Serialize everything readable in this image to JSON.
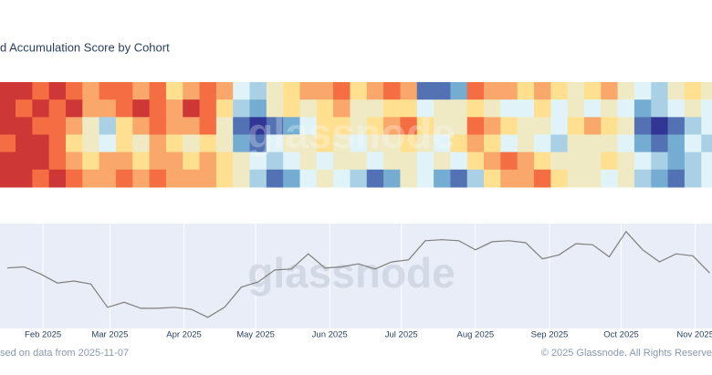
{
  "chart_data": [
    {
      "type": "heatmap",
      "title": "d Accumulation Score by Cohort",
      "watermark": "glassnode",
      "x": [
        "2025-01-17",
        "2025-01-24",
        "2025-01-31",
        "2025-02-07",
        "2025-02-14",
        "2025-02-21",
        "2025-02-28",
        "2025-03-07",
        "2025-03-14",
        "2025-03-21",
        "2025-03-28",
        "2025-04-04",
        "2025-04-11",
        "2025-04-18",
        "2025-04-25",
        "2025-05-02",
        "2025-05-09",
        "2025-05-16",
        "2025-05-23",
        "2025-05-30",
        "2025-06-06",
        "2025-06-13",
        "2025-06-20",
        "2025-06-27",
        "2025-07-04",
        "2025-07-11",
        "2025-07-18",
        "2025-07-25",
        "2025-08-01",
        "2025-08-08",
        "2025-08-15",
        "2025-08-22",
        "2025-08-29",
        "2025-09-05",
        "2025-09-12",
        "2025-09-19",
        "2025-09-26",
        "2025-10-03",
        "2025-10-10",
        "2025-10-17",
        "2025-10-24",
        "2025-10-31",
        "2025-11-07"
      ],
      "xlim": [
        "2025-01-14",
        "2025-11-08"
      ],
      "zlim": [
        0,
        1
      ],
      "colorscale": [
        "#a50026",
        "#f46d43",
        "#fee090",
        "#e0f3f8",
        "#74add1",
        "#313695"
      ],
      "z": [
        [
          0.1,
          0.1,
          0.2,
          0.1,
          0.2,
          0.3,
          0.2,
          0.2,
          0.3,
          0.2,
          0.4,
          0.3,
          0.2,
          0.3,
          0.6,
          0.7,
          0.5,
          0.4,
          0.3,
          0.3,
          0.2,
          0.4,
          0.3,
          0.2,
          0.3,
          0.9,
          0.9,
          0.8,
          0.2,
          0.3,
          0.3,
          0.4,
          0.3,
          0.4,
          0.5,
          0.4,
          0.3,
          0.5,
          0.6,
          0.7,
          0.5,
          0.4,
          0.5
        ],
        [
          0.1,
          0.2,
          0.1,
          0.2,
          0.1,
          0.3,
          0.3,
          0.2,
          0.1,
          0.2,
          0.3,
          0.1,
          0.2,
          0.4,
          0.7,
          0.8,
          0.5,
          0.4,
          0.5,
          0.4,
          0.3,
          0.5,
          0.5,
          0.4,
          0.4,
          0.6,
          0.5,
          0.5,
          0.4,
          0.5,
          0.6,
          0.6,
          0.4,
          0.6,
          0.5,
          0.6,
          0.5,
          0.6,
          0.8,
          0.7,
          0.6,
          0.5,
          0.6
        ],
        [
          0.1,
          0.1,
          0.2,
          0.2,
          0.3,
          0.5,
          0.7,
          0.4,
          0.3,
          0.2,
          0.3,
          0.3,
          0.2,
          0.5,
          0.9,
          1.0,
          0.9,
          0.8,
          0.6,
          0.4,
          0.4,
          0.5,
          0.4,
          0.3,
          0.2,
          0.4,
          0.5,
          0.5,
          0.2,
          0.3,
          0.4,
          0.5,
          0.5,
          0.6,
          0.4,
          0.3,
          0.4,
          0.5,
          0.9,
          1.0,
          0.9,
          0.7,
          0.6
        ],
        [
          0.2,
          0.1,
          0.1,
          0.2,
          0.4,
          0.5,
          0.6,
          0.4,
          0.5,
          0.3,
          0.4,
          0.5,
          0.4,
          0.5,
          0.8,
          0.9,
          0.6,
          0.5,
          0.5,
          0.4,
          0.5,
          0.6,
          0.5,
          0.5,
          0.4,
          0.5,
          0.6,
          0.4,
          0.3,
          0.4,
          0.6,
          0.5,
          0.6,
          0.7,
          0.5,
          0.5,
          0.5,
          0.6,
          0.8,
          0.9,
          0.8,
          0.6,
          0.7
        ],
        [
          0.1,
          0.1,
          0.1,
          0.2,
          0.3,
          0.4,
          0.3,
          0.3,
          0.4,
          0.3,
          0.3,
          0.4,
          0.3,
          0.4,
          0.5,
          0.6,
          0.7,
          0.6,
          0.5,
          0.6,
          0.5,
          0.5,
          0.6,
          0.5,
          0.5,
          0.6,
          0.5,
          0.6,
          0.4,
          0.3,
          0.2,
          0.3,
          0.4,
          0.5,
          0.5,
          0.5,
          0.4,
          0.5,
          0.6,
          0.7,
          0.8,
          0.7,
          0.6
        ],
        [
          0.1,
          0.1,
          0.2,
          0.1,
          0.2,
          0.3,
          0.3,
          0.2,
          0.3,
          0.2,
          0.3,
          0.3,
          0.3,
          0.4,
          0.5,
          0.7,
          0.9,
          0.8,
          0.6,
          0.5,
          0.6,
          0.7,
          0.9,
          0.8,
          0.5,
          0.6,
          0.8,
          0.9,
          0.7,
          0.4,
          0.3,
          0.3,
          0.2,
          0.4,
          0.5,
          0.5,
          0.6,
          0.5,
          0.7,
          0.8,
          0.9,
          0.7,
          0.6
        ]
      ]
    },
    {
      "type": "line",
      "watermark": "glassnode",
      "x": [
        "2025-01-17",
        "2025-01-24",
        "2025-01-31",
        "2025-02-07",
        "2025-02-14",
        "2025-02-21",
        "2025-02-28",
        "2025-03-07",
        "2025-03-14",
        "2025-03-21",
        "2025-03-28",
        "2025-04-04",
        "2025-04-11",
        "2025-04-18",
        "2025-04-25",
        "2025-05-02",
        "2025-05-09",
        "2025-05-16",
        "2025-05-23",
        "2025-05-30",
        "2025-06-06",
        "2025-06-13",
        "2025-06-20",
        "2025-06-27",
        "2025-07-04",
        "2025-07-11",
        "2025-07-18",
        "2025-07-25",
        "2025-08-01",
        "2025-08-08",
        "2025-08-15",
        "2025-08-22",
        "2025-08-29",
        "2025-09-05",
        "2025-09-12",
        "2025-09-19",
        "2025-09-26",
        "2025-10-03",
        "2025-10-10",
        "2025-10-17",
        "2025-10-24",
        "2025-10-31",
        "2025-11-07"
      ],
      "values": [
        104000,
        104500,
        101000,
        96500,
        97500,
        96000,
        84500,
        87000,
        84000,
        84000,
        84500,
        83500,
        79500,
        84500,
        94500,
        97000,
        103000,
        103500,
        111000,
        104000,
        104500,
        106000,
        103500,
        107000,
        108000,
        117500,
        118000,
        117500,
        113000,
        117000,
        117500,
        116500,
        108500,
        110500,
        116000,
        115500,
        109500,
        122000,
        113000,
        107000,
        111000,
        110000,
        101500
      ],
      "color": "#7f7f7f",
      "xlim": [
        "2025-01-14",
        "2025-11-08"
      ],
      "ylim": [
        74000,
        126000
      ],
      "grid": true,
      "xticks": [
        {
          "value": "2025-02-01",
          "label": "Feb 2025"
        },
        {
          "value": "2025-03-01",
          "label": "Mar 2025"
        },
        {
          "value": "2025-04-01",
          "label": "Apr 2025"
        },
        {
          "value": "2025-05-01",
          "label": "May 2025"
        },
        {
          "value": "2025-06-01",
          "label": "Jun 2025"
        },
        {
          "value": "2025-07-01",
          "label": "Jul 2025"
        },
        {
          "value": "2025-08-01",
          "label": "Aug 2025"
        },
        {
          "value": "2025-09-01",
          "label": "Sep 2025"
        },
        {
          "value": "2025-10-01",
          "label": "Oct 2025"
        },
        {
          "value": "2025-11-01",
          "label": "Nov 2025"
        }
      ],
      "footer_left": "sed on data from 2025-11-07",
      "footer_right": "© 2025 Glassnode. All Rights Reserve"
    }
  ]
}
